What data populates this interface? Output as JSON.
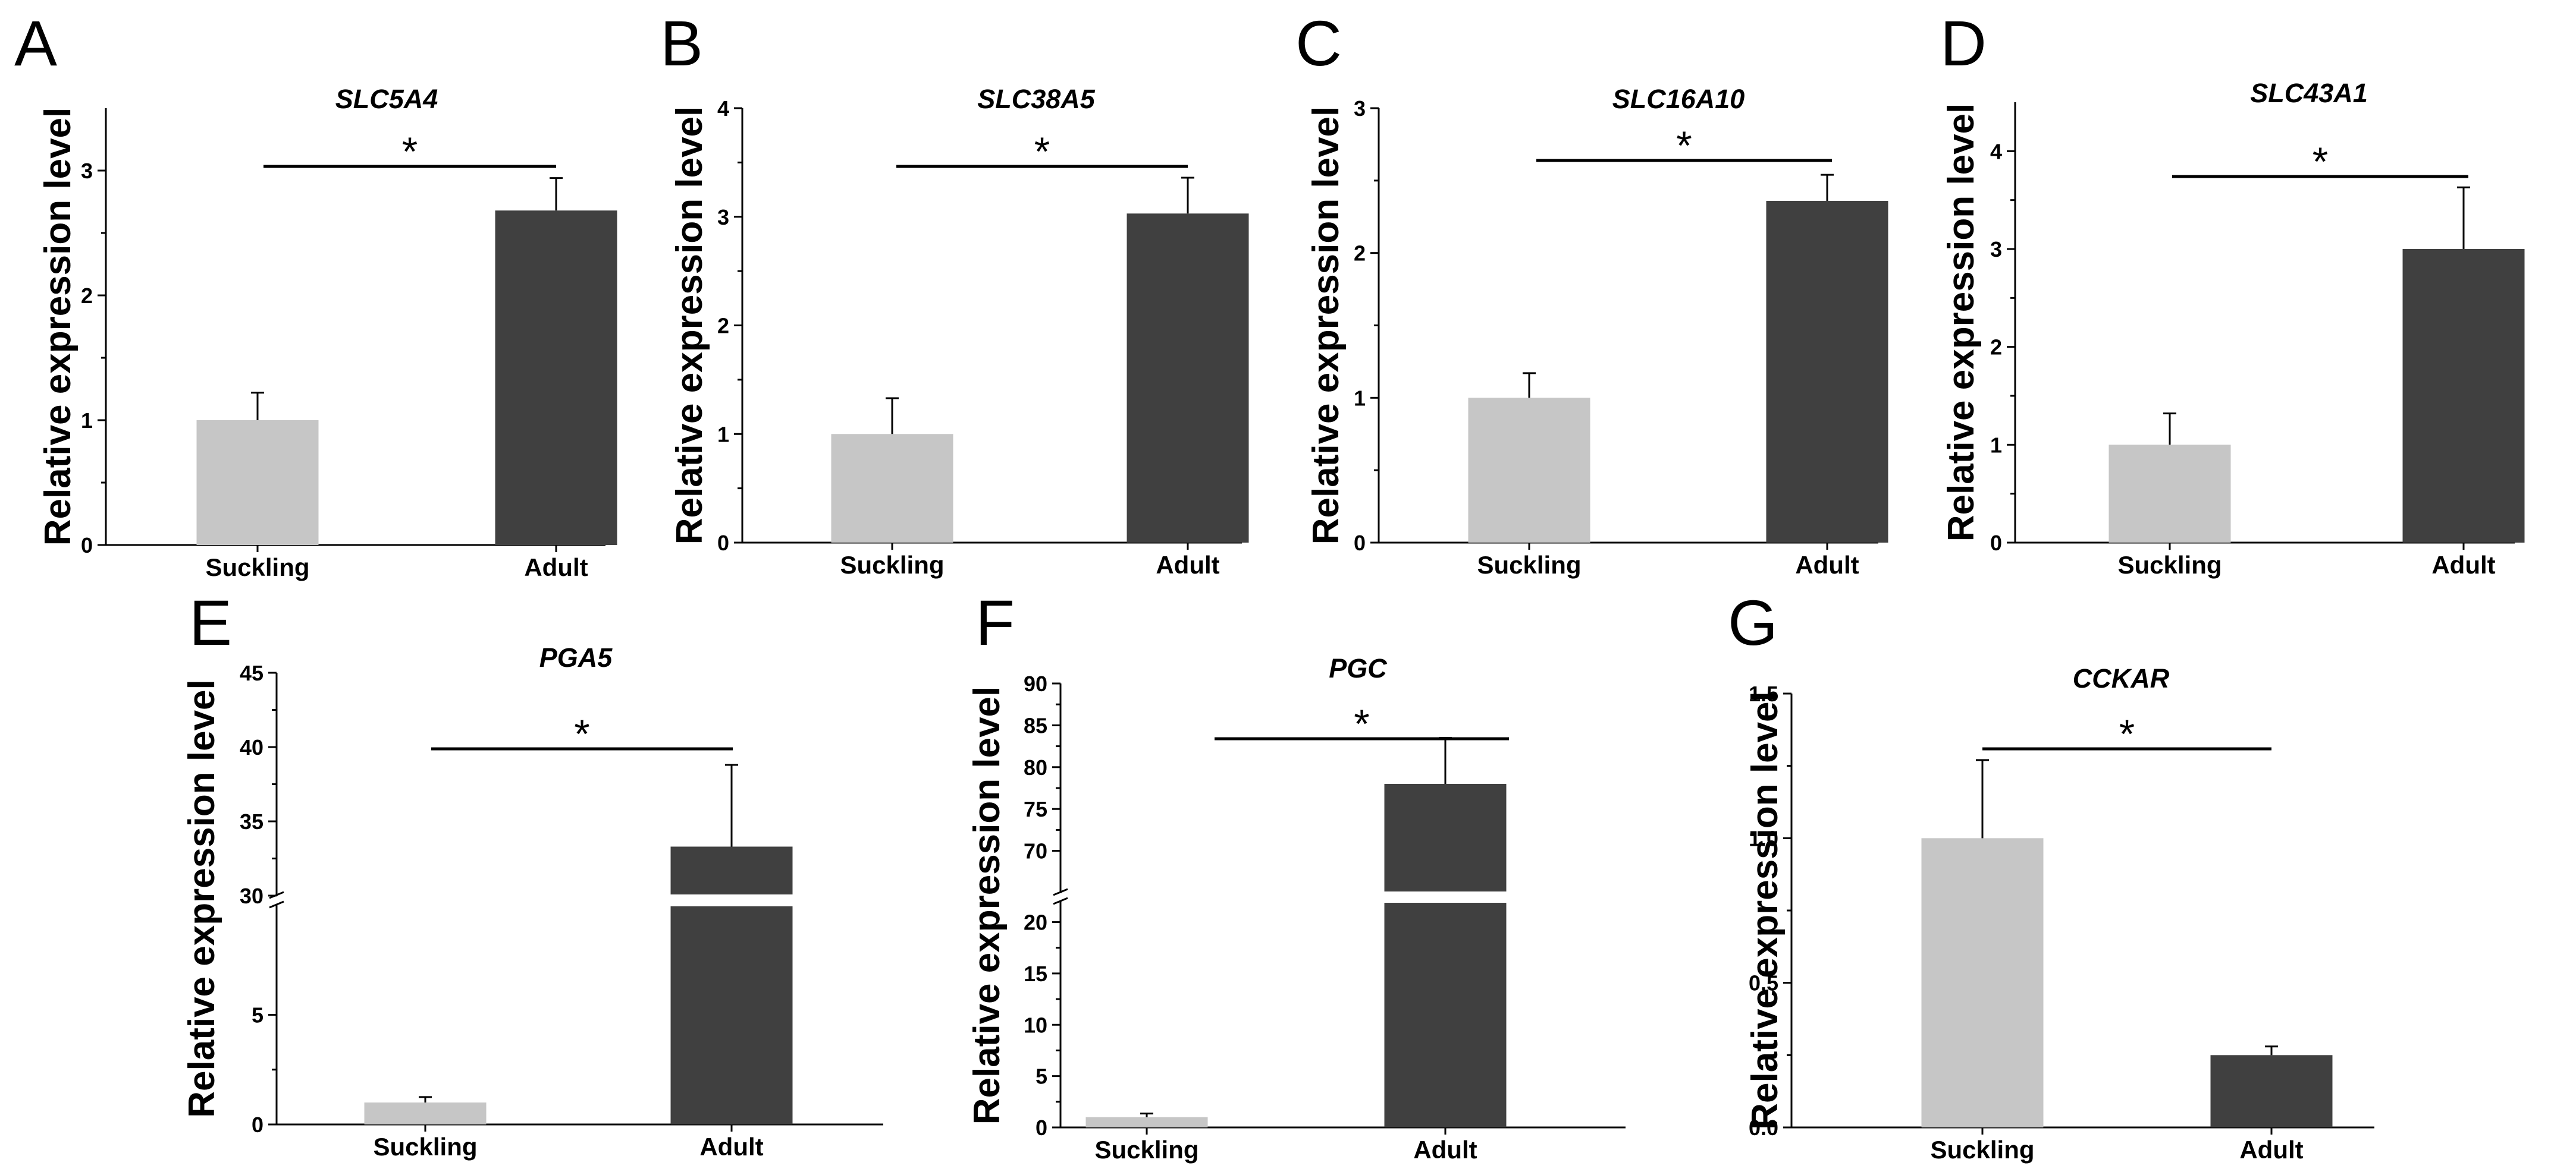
{
  "colors": {
    "suckling": "#c6c6c6",
    "adult": "#404040",
    "axis": "#000000"
  },
  "chart_data": [
    {
      "panel": "A",
      "type": "bar",
      "title": "SLC5A4",
      "ylabel": "Relative expression level",
      "categories": [
        "Suckling",
        "Adult"
      ],
      "values": [
        1.0,
        2.68
      ],
      "errors": [
        0.22,
        0.26
      ],
      "ylim": [
        0,
        3.5
      ],
      "yticks": [
        "0",
        "1",
        "2",
        "3"
      ],
      "significance": "*"
    },
    {
      "panel": "B",
      "type": "bar",
      "title": "SLC38A5",
      "ylabel": "Relative expression level",
      "categories": [
        "Suckling",
        "Adult"
      ],
      "values": [
        1.0,
        3.03
      ],
      "errors": [
        0.33,
        0.33
      ],
      "ylim": [
        0,
        4
      ],
      "yticks": [
        "0",
        "1",
        "2",
        "3",
        "4"
      ],
      "significance": "*"
    },
    {
      "panel": "C",
      "type": "bar",
      "title": "SLC16A10",
      "ylabel": "Relative expression level",
      "categories": [
        "Suckling",
        "Adult"
      ],
      "values": [
        1.0,
        2.36
      ],
      "errors": [
        0.17,
        0.18
      ],
      "ylim": [
        0,
        3
      ],
      "yticks": [
        "0",
        "1",
        "2",
        "3"
      ],
      "significance": "*"
    },
    {
      "panel": "D",
      "type": "bar",
      "title": "SLC43A1",
      "ylabel": "Relative expression level",
      "categories": [
        "Suckling",
        "Adult"
      ],
      "values": [
        1.0,
        3.0
      ],
      "errors": [
        0.32,
        0.63
      ],
      "ylim": [
        0,
        4.5
      ],
      "yticks": [
        "0",
        "1",
        "2",
        "3",
        "4"
      ],
      "significance": "*"
    },
    {
      "panel": "E",
      "type": "bar",
      "title": "PGA5",
      "ylabel": "Relative expression level",
      "categories": [
        "Suckling",
        "Adult"
      ],
      "values": [
        1.0,
        33.3
      ],
      "errors": [
        0.25,
        5.5
      ],
      "axis_break": [
        10,
        30
      ],
      "ylim": [
        0,
        45
      ],
      "yticks": [
        "0",
        "5",
        "30",
        "35",
        "40",
        "45"
      ],
      "significance": "*"
    },
    {
      "panel": "F",
      "type": "bar",
      "title": "PGC",
      "ylabel": "Relative expression level",
      "categories": [
        "Suckling",
        "Adult"
      ],
      "values": [
        1.0,
        78.0
      ],
      "errors": [
        0.35,
        5.5
      ],
      "axis_break": [
        22,
        65
      ],
      "ylim": [
        0,
        90
      ],
      "yticks": [
        "0",
        "5",
        "10",
        "15",
        "20",
        "70",
        "75",
        "80",
        "85",
        "90"
      ],
      "significance": "*"
    },
    {
      "panel": "G",
      "type": "bar",
      "title": "CCKAR",
      "ylabel": "Relative expression level",
      "categories": [
        "Suckling",
        "Adult"
      ],
      "values": [
        1.0,
        0.25
      ],
      "errors": [
        0.27,
        0.03
      ],
      "ylim": [
        0,
        1.5
      ],
      "yticks": [
        "0.0",
        "0.5",
        "1.0",
        "1.5"
      ],
      "significance": "*"
    }
  ]
}
